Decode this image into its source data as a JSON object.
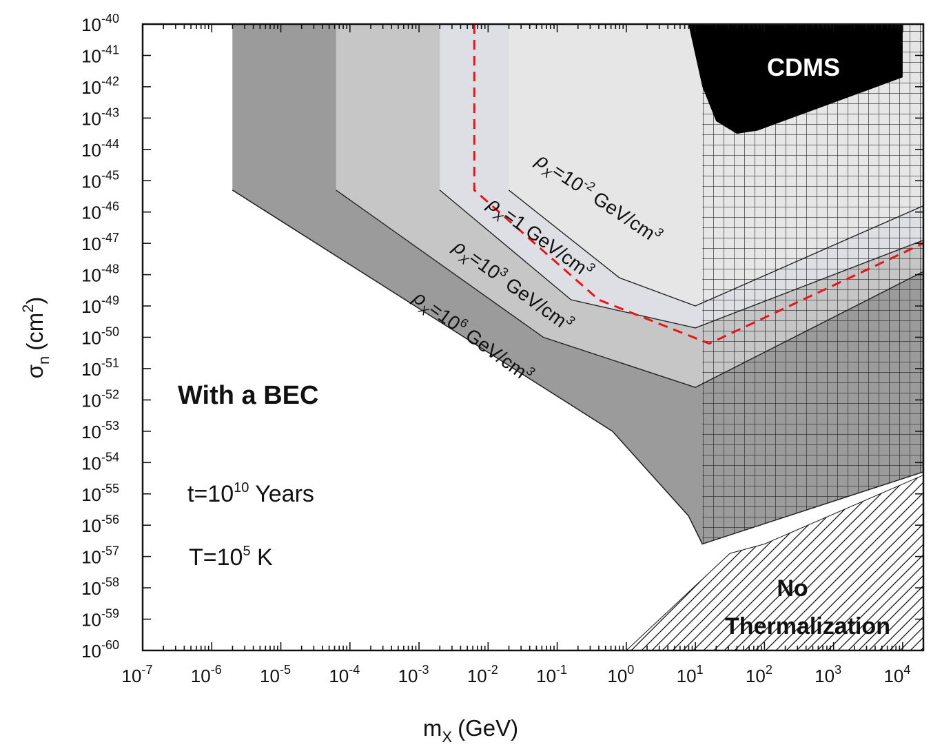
{
  "chart_data": {
    "type": "area",
    "title": "",
    "xlabel": "m",
    "xlabel_subscript": "X",
    "xlabel_units": "(GeV)",
    "ylabel": "σ",
    "ylabel_subscript": "n",
    "ylabel_units": "(cm",
    "ylabel_units_sup": "2",
    "ylabel_units_close": ")",
    "x_scale": "log",
    "y_scale": "log",
    "xlim_exp": [
      -7,
      4.3
    ],
    "ylim_exp": [
      -60,
      -40
    ],
    "x_tick_exponents": [
      "-7",
      "-6",
      "-5",
      "-4",
      "-3",
      "-2",
      "-1",
      "0",
      "1",
      "2",
      "3",
      "4"
    ],
    "y_tick_exponents": [
      "-40",
      "-41",
      "-42",
      "-43",
      "-44",
      "-45",
      "-46",
      "-47",
      "-48",
      "-49",
      "-50",
      "-51",
      "-52",
      "-53",
      "-54",
      "-55",
      "-56",
      "-57",
      "-58",
      "-59",
      "-60"
    ],
    "tick_base": "10",
    "colors": {
      "band_1e6": "#9b9b9b",
      "band_1e3": "#c6c6c6",
      "band_1": "#dedfe4",
      "band_1em2": "#e6e6e6",
      "cdms": "#000000",
      "dashed": "#e8141b",
      "hatch": "#111111",
      "grid_mesh": "#222222"
    },
    "series": [
      {
        "rho": "10^6",
        "vertical_edge_log_m": -5.7,
        "boundary": [
          [
            -5.7,
            -45.3
          ],
          [
            -0.2,
            -53.0
          ],
          [
            0.9,
            -55.7
          ],
          [
            1.1,
            -56.6
          ],
          [
            4.3,
            -54.3
          ]
        ]
      },
      {
        "rho": "10^3",
        "vertical_edge_log_m": -4.2,
        "boundary": [
          [
            -4.2,
            -45.3
          ],
          [
            -1.2,
            -50.0
          ],
          [
            1.0,
            -51.6
          ],
          [
            4.3,
            -47.9
          ]
        ]
      },
      {
        "rho": "1",
        "vertical_edge_log_m": -2.7,
        "boundary": [
          [
            -2.7,
            -45.3
          ],
          [
            -0.8,
            -48.8
          ],
          [
            1.0,
            -49.7
          ],
          [
            4.3,
            -46.9
          ]
        ]
      },
      {
        "rho": "10^-2",
        "vertical_edge_log_m": -1.7,
        "boundary": [
          [
            -1.7,
            -45.3
          ],
          [
            -0.1,
            -48.1
          ],
          [
            1.0,
            -49.0
          ],
          [
            4.3,
            -45.8
          ]
        ]
      }
    ],
    "dashed_curve": [
      [
        -2.2,
        -40
      ],
      [
        -2.2,
        -45.3
      ],
      [
        -0.4,
        -48.8
      ],
      [
        1.2,
        -50.2
      ],
      [
        4.3,
        -47.0
      ]
    ],
    "cdms_region": [
      [
        0.9,
        -40
      ],
      [
        4.0,
        -40
      ],
      [
        4.0,
        -41.7
      ],
      [
        1.9,
        -43.4
      ],
      [
        1.6,
        -43.5
      ],
      [
        1.3,
        -43.1
      ],
      [
        1.1,
        -42.0
      ],
      [
        0.9,
        -40.0
      ]
    ],
    "mesh_region_min_log_m": 1.1,
    "no_thermalization_region": [
      [
        0.0,
        -60
      ],
      [
        4.3,
        -60
      ],
      [
        4.3,
        -54.4
      ],
      [
        2.0,
        -56.6
      ],
      [
        1.5,
        -56.9
      ]
    ],
    "annotations": {
      "with_bec": "With a BEC",
      "time_prefix": "t=10",
      "time_exp": "10",
      "time_suffix": " Years",
      "temp_prefix": "T=10",
      "temp_exp": "5",
      "temp_suffix": " K",
      "cdms": "CDMS",
      "no_therm_1": "No",
      "no_therm_2": "Thermalization",
      "rho_symbol": "ρ",
      "rho_sub": "X",
      "rho_eq": "=10",
      "rho_eq_1": "=1",
      "rho_1em2_exp": "-2",
      "rho_1e3_exp": "3",
      "rho_1e6_exp": "6",
      "rho_units": "GeV/cm",
      "rho_units_exp": "3"
    }
  }
}
